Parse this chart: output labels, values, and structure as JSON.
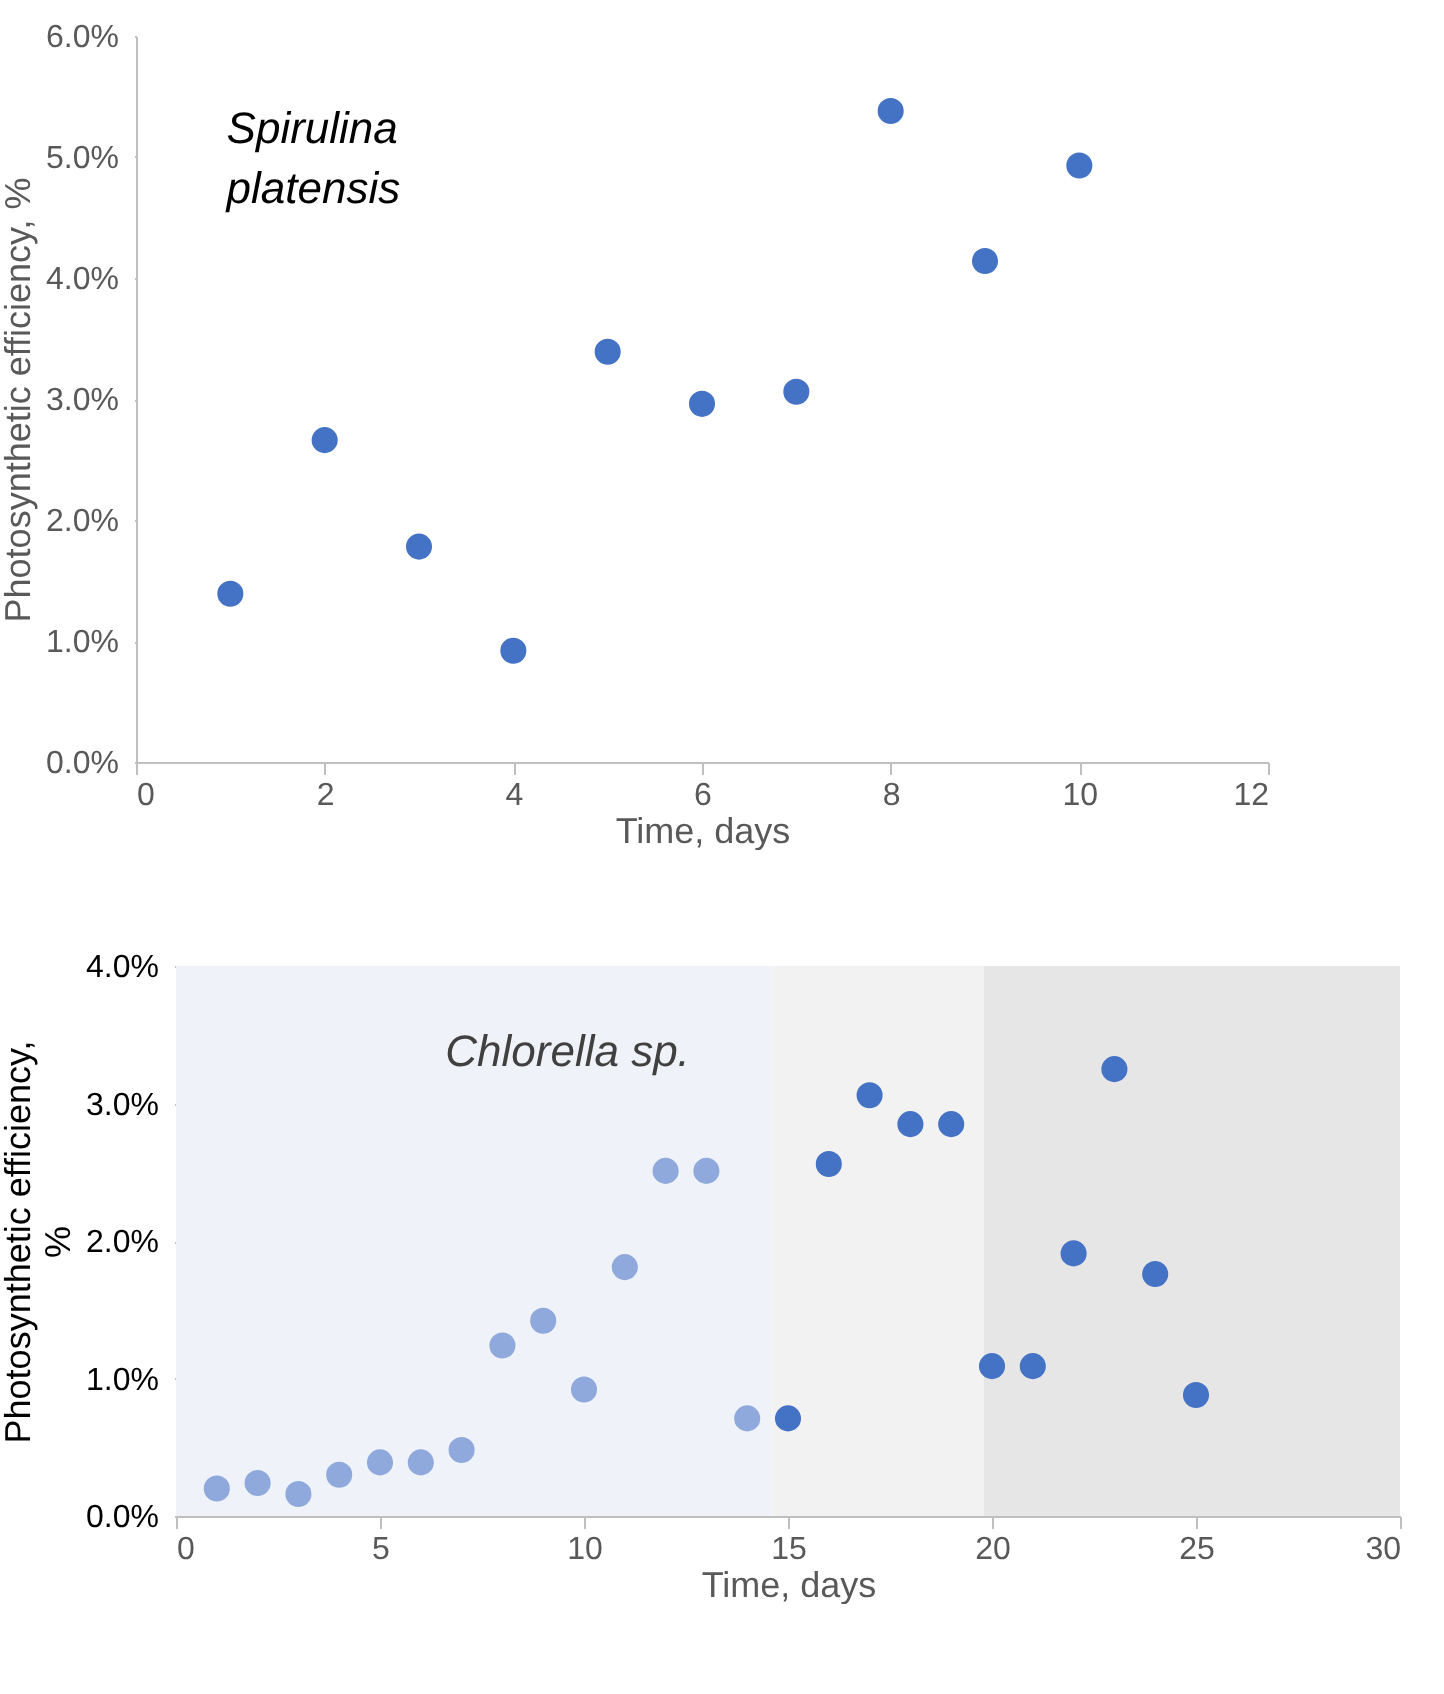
{
  "chart_data": [
    {
      "type": "scatter",
      "xlabel": "Time, days",
      "ylabel": "Photosynthetic efficiency, %",
      "annotations": [
        "Spirulina platensis"
      ],
      "marker": "circle",
      "grid": false,
      "xlim": [
        0,
        12
      ],
      "xticks": [
        0,
        2,
        4,
        6,
        8,
        10,
        12
      ],
      "ylim": [
        0,
        6
      ],
      "yticks": [
        {
          "value": 0,
          "label": "0.0%"
        },
        {
          "value": 1,
          "label": "1.0%"
        },
        {
          "value": 2,
          "label": "2.0%"
        },
        {
          "value": 3,
          "label": "3.0%"
        },
        {
          "value": 4,
          "label": "4.0%"
        },
        {
          "value": 5,
          "label": "5.0%"
        },
        {
          "value": 6,
          "label": "6.0%"
        }
      ],
      "series": [
        {
          "color": "#4472c4",
          "x": [
            1,
            2,
            3,
            4,
            5,
            6,
            7,
            8,
            9,
            10
          ],
          "values": [
            1.39,
            2.66,
            1.78,
            0.92,
            3.39,
            2.96,
            3.06,
            5.38,
            4.14,
            4.93
          ]
        }
      ]
    },
    {
      "type": "scatter",
      "xlabel": "Time, days",
      "ylabel": "Photosynthetic efficiency, %",
      "annotations": [
        "Chlorella sp."
      ],
      "marker": "circle",
      "grid": false,
      "xlim": [
        0,
        30
      ],
      "xticks": [
        0,
        5,
        10,
        15,
        20,
        25,
        30
      ],
      "ylim": [
        0,
        4
      ],
      "yticks": [
        {
          "value": 0,
          "label": "0.0%"
        },
        {
          "value": 1,
          "label": "1.0%"
        },
        {
          "value": 2,
          "label": "2.0%"
        },
        {
          "value": 3,
          "label": "3.0%"
        },
        {
          "value": 4,
          "label": "4.0%"
        }
      ],
      "bands": [
        {
          "axis": "x",
          "from": 0,
          "to": 14.6,
          "color": "#eff2f8"
        },
        {
          "axis": "x",
          "from": 14.6,
          "to": 19.8,
          "color": "#f2f2f2"
        },
        {
          "axis": "x",
          "from": 19.8,
          "to": 30,
          "color": "#e6e6e6"
        }
      ],
      "series": [
        {
          "color": "#8fa9dc",
          "x": [
            1,
            2,
            3,
            4,
            5,
            6,
            7,
            8,
            9,
            10,
            11,
            12,
            13,
            14
          ],
          "values": [
            0.2,
            0.24,
            0.16,
            0.3,
            0.39,
            0.39,
            0.48,
            1.24,
            1.42,
            0.92,
            1.81,
            2.51,
            2.51,
            0.71
          ]
        },
        {
          "color": "#4472c4",
          "x": [
            15,
            16,
            17,
            18,
            19,
            20,
            21,
            22,
            23,
            24,
            25
          ],
          "values": [
            0.71,
            2.56,
            3.06,
            2.85,
            2.85,
            1.09,
            1.09,
            1.91,
            3.25,
            1.76,
            0.88
          ]
        }
      ]
    }
  ]
}
